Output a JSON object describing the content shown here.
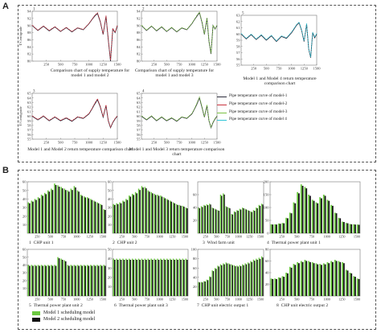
{
  "panel_a_label": "A",
  "panel_b_label": "B",
  "colors": {
    "model1": "#2b2b3b",
    "model2": "#c9323e",
    "model3": "#7ac142",
    "model4": "#2ec4d6",
    "bar_green": "#6cc940",
    "bar_black": "#111111"
  },
  "chart_data": [
    {
      "type": "line",
      "panel": "A1",
      "index": "1",
      "caption": "Comparison chart of supply temperature for model 1 and model 2",
      "ylabel": "T/Centigrade",
      "xticks": [
        250,
        500,
        750,
        1000,
        1250,
        1500
      ],
      "yticks": [
        80,
        82,
        84,
        86,
        88,
        90,
        92,
        94
      ],
      "xlim": [
        0,
        1500
      ],
      "ylim": [
        80,
        94
      ],
      "series": [
        {
          "color_key": "model1",
          "x": [
            0,
            100,
            200,
            300,
            400,
            500,
            600,
            700,
            800,
            900,
            1000,
            1050,
            1100,
            1150,
            1200,
            1250,
            1300,
            1340,
            1380,
            1420,
            1460,
            1500
          ],
          "y": [
            90,
            88.6,
            89.8,
            88.5,
            89.6,
            88.3,
            89.4,
            88.2,
            89.3,
            88.8,
            90.5,
            91.6,
            92.6,
            93.4,
            91,
            87.5,
            92.5,
            86,
            80,
            89,
            88,
            90
          ]
        },
        {
          "color_key": "model2",
          "x": [
            0,
            100,
            200,
            300,
            400,
            500,
            600,
            700,
            800,
            900,
            1000,
            1050,
            1100,
            1150,
            1200,
            1250,
            1300,
            1340,
            1380,
            1420,
            1460,
            1500
          ],
          "y": [
            90.1,
            88.7,
            89.9,
            88.6,
            89.7,
            88.4,
            89.5,
            88.3,
            89.4,
            88.9,
            90.6,
            91.7,
            92.8,
            93.6,
            91.2,
            87.6,
            92.8,
            86.2,
            80.3,
            89.2,
            88.1,
            90.1
          ]
        }
      ]
    },
    {
      "type": "line",
      "panel": "A2",
      "index": "2",
      "caption": "Comparison chart of supply temperature for model 1 and model 3",
      "xticks": [
        250,
        500,
        750,
        1000,
        1250,
        1500
      ],
      "yticks": [
        80,
        82,
        84,
        86,
        88,
        90,
        92,
        94
      ],
      "xlim": [
        0,
        1500
      ],
      "ylim": [
        80,
        94
      ],
      "series": [
        {
          "color_key": "model1",
          "x": [
            0,
            100,
            200,
            300,
            400,
            500,
            600,
            700,
            800,
            900,
            1000,
            1050,
            1100,
            1150,
            1200,
            1250,
            1300,
            1340,
            1380,
            1420,
            1460,
            1500
          ],
          "y": [
            90,
            88.6,
            89.8,
            88.5,
            89.6,
            88.3,
            89.4,
            88.2,
            89.3,
            88.8,
            90.5,
            91.6,
            92.6,
            93.6,
            91,
            87.5,
            92,
            85.5,
            82,
            90,
            89,
            90
          ]
        },
        {
          "color_key": "model3",
          "x": [
            0,
            100,
            200,
            300,
            400,
            500,
            600,
            700,
            800,
            900,
            1000,
            1050,
            1100,
            1150,
            1200,
            1250,
            1300,
            1340,
            1380,
            1420,
            1460,
            1500
          ],
          "y": [
            90.1,
            88.7,
            89.9,
            88.6,
            89.7,
            88.4,
            89.5,
            88.3,
            89.4,
            88.9,
            90.6,
            91.7,
            92.8,
            93.8,
            91.2,
            87.6,
            92.2,
            85.7,
            82.2,
            90.1,
            89.1,
            90.1
          ]
        }
      ]
    },
    {
      "type": "line",
      "panel": "A3",
      "index": "5",
      "caption": "Model 1 and Model 4 return temperature comparison chart",
      "xticks": [
        250,
        500,
        750,
        1000,
        1250,
        1500
      ],
      "yticks": [
        55,
        56,
        57,
        58,
        59,
        60,
        61,
        62,
        63
      ],
      "xlim": [
        0,
        1500
      ],
      "ylim": [
        55,
        63
      ],
      "series": [
        {
          "color_key": "model1",
          "x": [
            0,
            100,
            200,
            300,
            400,
            500,
            600,
            700,
            800,
            900,
            1000,
            1050,
            1100,
            1150,
            1200,
            1250,
            1300,
            1340,
            1380,
            1420,
            1460,
            1500
          ],
          "y": [
            60,
            59.2,
            59.9,
            59.1,
            59.8,
            59,
            59.7,
            58.8,
            59.6,
            59.3,
            60.2,
            60.8,
            61.4,
            61.8,
            60.6,
            58.8,
            61.6,
            57.6,
            56.2,
            60.2,
            59.4,
            60
          ]
        },
        {
          "color_key": "model4",
          "x": [
            0,
            100,
            200,
            300,
            400,
            500,
            600,
            700,
            800,
            900,
            1000,
            1050,
            1100,
            1150,
            1200,
            1250,
            1300,
            1340,
            1380,
            1420,
            1460,
            1500
          ],
          "y": [
            60.1,
            59.3,
            60,
            59.2,
            59.9,
            59.1,
            59.8,
            58.9,
            59.7,
            59.4,
            60.3,
            60.9,
            61.5,
            61.9,
            60.7,
            58.9,
            61.7,
            57.7,
            56.3,
            60.3,
            59.5,
            60.1
          ]
        }
      ]
    },
    {
      "type": "line",
      "panel": "A4",
      "index": "3",
      "caption": "Model 1 and Model 2 return temperature comparison chart",
      "ylabel": "T/Centigrade",
      "xticks": [
        250,
        500,
        750,
        1000,
        1250,
        1500
      ],
      "yticks": [
        55,
        56,
        57,
        58,
        59,
        60,
        61,
        62,
        63,
        64,
        65
      ],
      "xlim": [
        0,
        1500
      ],
      "ylim": [
        55,
        65
      ],
      "series": [
        {
          "color_key": "model1",
          "x": [
            0,
            100,
            200,
            300,
            400,
            500,
            600,
            700,
            800,
            900,
            1000,
            1050,
            1100,
            1150,
            1200,
            1250,
            1300,
            1340,
            1380,
            1420,
            1460,
            1500
          ],
          "y": [
            60,
            59.2,
            60,
            59,
            59.8,
            59,
            59.6,
            58.9,
            59.8,
            59.5,
            60.5,
            61.5,
            62.6,
            63.6,
            62,
            59.8,
            62.3,
            59,
            57.5,
            58.6,
            59.4,
            60
          ]
        },
        {
          "color_key": "model2",
          "x": [
            0,
            100,
            200,
            300,
            400,
            500,
            600,
            700,
            800,
            900,
            1000,
            1050,
            1100,
            1150,
            1200,
            1250,
            1300,
            1340,
            1380,
            1420,
            1460,
            1500
          ],
          "y": [
            60.1,
            59.3,
            60.1,
            59.1,
            59.9,
            59.1,
            59.7,
            59,
            59.9,
            59.6,
            60.6,
            61.6,
            62.8,
            63.8,
            62.2,
            59.9,
            62.5,
            59.1,
            57.6,
            58.7,
            59.5,
            60.1
          ]
        }
      ]
    },
    {
      "type": "line",
      "panel": "A5",
      "index": "4",
      "caption": "Model 1 and Model 3 return temperature comparison chart",
      "xticks": [
        250,
        500,
        750,
        1000,
        1250,
        1500
      ],
      "yticks": [
        55,
        56,
        57,
        58,
        59,
        60,
        61,
        62,
        63,
        64,
        65
      ],
      "xlim": [
        0,
        1500
      ],
      "ylim": [
        55,
        65
      ],
      "series": [
        {
          "color_key": "model1",
          "x": [
            0,
            100,
            200,
            300,
            400,
            500,
            600,
            700,
            800,
            900,
            1000,
            1050,
            1100,
            1150,
            1200,
            1250,
            1300,
            1340,
            1380,
            1420,
            1460,
            1500
          ],
          "y": [
            60,
            59.2,
            60,
            59,
            59.8,
            59,
            59.6,
            58.9,
            59.8,
            59.5,
            60.5,
            61.5,
            62.6,
            64,
            62,
            59.8,
            62.3,
            59,
            57.5,
            58.6,
            59.4,
            60
          ]
        },
        {
          "color_key": "model3",
          "x": [
            0,
            100,
            200,
            300,
            400,
            500,
            600,
            700,
            800,
            900,
            1000,
            1050,
            1100,
            1150,
            1200,
            1250,
            1300,
            1340,
            1380,
            1420,
            1460,
            1500
          ],
          "y": [
            60.1,
            59.3,
            60.1,
            59.1,
            59.9,
            59.1,
            59.7,
            59,
            59.9,
            59.6,
            60.6,
            61.6,
            62.8,
            64.2,
            62.2,
            59.9,
            62.5,
            59.1,
            57.6,
            58.7,
            59.5,
            60.1
          ]
        }
      ]
    },
    {
      "type": "bar",
      "panel": "B1",
      "index": "1",
      "caption": "CHP unit 1",
      "xticks": [
        250,
        500,
        750,
        1000,
        1250,
        1500
      ],
      "yticks": [
        10,
        20,
        30,
        40,
        50,
        60
      ],
      "ylim": [
        0,
        60
      ],
      "values": [
        36,
        38,
        40,
        42,
        45,
        47,
        50,
        52,
        58,
        56,
        54,
        52,
        50,
        52,
        55,
        50,
        45,
        43,
        42,
        40,
        38,
        36,
        34,
        28
      ]
    },
    {
      "type": "bar",
      "panel": "B2",
      "index": "2",
      "caption": "CHP unit 2",
      "xticks": [
        250,
        500,
        750,
        1000,
        1250,
        1500
      ],
      "yticks": [
        10,
        20,
        30,
        40,
        50,
        60
      ],
      "ylim": [
        0,
        60
      ],
      "values": [
        34,
        35,
        36,
        38,
        40,
        44,
        46,
        48,
        52,
        55,
        54,
        50,
        48,
        46,
        45,
        44,
        42,
        40,
        38,
        36,
        34,
        33,
        32,
        30
      ]
    },
    {
      "type": "bar",
      "panel": "B3",
      "index": "3",
      "caption": "Wind farm unit",
      "xticks": [
        250,
        500,
        750,
        1000,
        1250,
        1500
      ],
      "yticks": [
        20,
        40,
        60
      ],
      "ylim": [
        0,
        80
      ],
      "values": [
        40,
        42,
        44,
        45,
        46,
        40,
        38,
        36,
        60,
        62,
        42,
        40,
        30,
        34,
        36,
        38,
        40,
        38,
        36,
        34,
        36,
        40,
        44,
        46
      ]
    },
    {
      "type": "bar",
      "panel": "B4",
      "index": "4",
      "caption": "Thermal power plant unit 1",
      "xticks": [
        250,
        500,
        750,
        1000,
        1250,
        1500
      ],
      "yticks": [
        0,
        50,
        100,
        150,
        200
      ],
      "ylim": [
        0,
        200
      ],
      "values": [
        35,
        35,
        38,
        40,
        60,
        80,
        120,
        160,
        190,
        180,
        150,
        130,
        120,
        140,
        150,
        130,
        110,
        80,
        60,
        45,
        40,
        36,
        35,
        34
      ]
    },
    {
      "type": "bar",
      "panel": "B5",
      "index": "5",
      "caption": "Thermal power plant unit 2",
      "xticks": [
        250,
        500,
        750,
        1000,
        1250,
        1500
      ],
      "yticks": [
        10,
        20,
        30,
        40,
        50,
        60
      ],
      "ylim": [
        0,
        60
      ],
      "values": [
        40,
        40,
        40,
        40,
        40,
        40,
        40,
        40,
        40,
        50,
        48,
        46,
        40,
        40,
        40,
        40,
        40,
        40,
        40,
        40,
        40,
        40,
        40,
        40
      ]
    },
    {
      "type": "bar",
      "panel": "B6",
      "index": "6",
      "caption": "Thermal power plant unit 3",
      "xticks": [
        250,
        500,
        750,
        1000,
        1250,
        1500
      ],
      "yticks": [
        10,
        20,
        30,
        40,
        50
      ],
      "ylim": [
        0,
        50
      ],
      "values": [
        40,
        40,
        40,
        40,
        40,
        40,
        40,
        40,
        40,
        40,
        40,
        40,
        40,
        40,
        40,
        40,
        40,
        40,
        40,
        40,
        40,
        40,
        40,
        40
      ]
    },
    {
      "type": "bar",
      "panel": "B7",
      "index": "7",
      "caption": "CHP unit electric output 1",
      "xticks": [
        250,
        500,
        750,
        1000,
        1250,
        1500
      ],
      "yticks": [
        20,
        40,
        60,
        80,
        100
      ],
      "ylim": [
        0,
        100
      ],
      "values": [
        30,
        30,
        32,
        35,
        42,
        55,
        60,
        65,
        68,
        70,
        72,
        70,
        68,
        66,
        65,
        66,
        68,
        70,
        72,
        75,
        78,
        80,
        82,
        85
      ]
    },
    {
      "type": "bar",
      "panel": "B8",
      "index": "8",
      "caption": "CHP unit electric output 2",
      "xticks": [
        250,
        500,
        750,
        1000,
        1250,
        1500
      ],
      "yticks": [
        20,
        40,
        60,
        80
      ],
      "ylim": [
        0,
        80
      ],
      "values": [
        30,
        30,
        32,
        34,
        40,
        50,
        55,
        58,
        60,
        62,
        60,
        58,
        56,
        55,
        56,
        58,
        60,
        62,
        60,
        58,
        45,
        40,
        34,
        30
      ]
    }
  ],
  "legend_a": [
    {
      "label": "Pipe temperature curve of model-1",
      "color_key": "model1"
    },
    {
      "label": "Pipe temperature curve of model-2",
      "color_key": "model2"
    },
    {
      "label": "Pipe temperature curve of model-3",
      "color_key": "model3"
    },
    {
      "label": "Pipe temperature curve of model 4",
      "color_key": "model4"
    }
  ],
  "legend_b": [
    {
      "label": "Model 1 scheduling model",
      "color_key": "bar_green"
    },
    {
      "label": "Model 2 scheduling model",
      "color_key": "bar_black"
    }
  ]
}
